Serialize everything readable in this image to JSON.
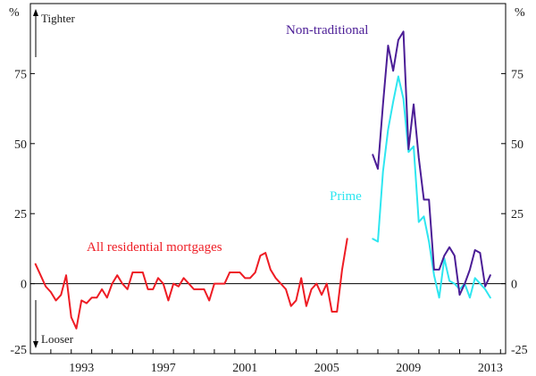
{
  "chart_data": {
    "type": "line",
    "title": "",
    "unit_label": "%",
    "ylim": [
      -25,
      100
    ],
    "yticks": [
      -25,
      0,
      25,
      50,
      75
    ],
    "xlim": [
      1990,
      2013.25
    ],
    "xticks": [
      1993,
      1997,
      2001,
      2005,
      2009,
      2013
    ],
    "annotations": {
      "tighter": "Tighter",
      "looser": "Looser"
    },
    "colors": {
      "all": "#ee1c24",
      "prime": "#2ee6f0",
      "nontrad": "#4b1d96",
      "axis": "#000000"
    },
    "series": [
      {
        "key": "all",
        "name": "All residential mortgages",
        "x": [
          1990.25,
          1990.5,
          1990.75,
          1991.0,
          1991.25,
          1991.5,
          1991.75,
          1992.0,
          1992.25,
          1992.5,
          1992.75,
          1993.0,
          1993.25,
          1993.5,
          1993.75,
          1994.0,
          1994.25,
          1994.5,
          1994.75,
          1995.0,
          1995.25,
          1995.5,
          1995.75,
          1996.0,
          1996.25,
          1996.5,
          1996.75,
          1997.0,
          1997.25,
          1997.5,
          1997.75,
          1998.0,
          1998.25,
          1998.5,
          1998.75,
          1999.0,
          1999.25,
          1999.5,
          1999.75,
          2000.0,
          2000.25,
          2000.5,
          2000.75,
          2001.0,
          2001.25,
          2001.5,
          2001.75,
          2002.0,
          2002.25,
          2002.5,
          2002.75,
          2003.0,
          2003.25,
          2003.5,
          2003.75,
          2004.0,
          2004.25,
          2004.5,
          2004.75,
          2005.0,
          2005.25,
          2005.5,
          2005.75,
          2006.0
        ],
        "values": [
          7,
          3,
          -1,
          -3,
          -6,
          -4,
          3,
          -12,
          -16,
          -6,
          -7,
          -5,
          -5,
          -2,
          -5,
          0,
          3,
          0,
          -2,
          4,
          4,
          4,
          -2,
          -2,
          2,
          0,
          -6,
          0,
          -1,
          2,
          0,
          -2,
          -2,
          -2,
          -6,
          0,
          0,
          0,
          4,
          4,
          4,
          2,
          2,
          4,
          10,
          11,
          5,
          2,
          0,
          -2,
          -8,
          -6,
          2,
          -8,
          -2,
          0,
          -4,
          0,
          -10,
          -10,
          5,
          16,
          null,
          null
        ]
      },
      {
        "key": "prime",
        "name": "Prime",
        "x": [
          2006.75,
          2007.0,
          2007.25,
          2007.5,
          2007.75,
          2008.0,
          2008.25,
          2008.5,
          2008.75,
          2009.0,
          2009.25,
          2009.5,
          2009.75,
          2010.0,
          2010.25,
          2010.5,
          2010.75,
          2011.0,
          2011.25,
          2011.5,
          2011.75,
          2012.0,
          2012.25,
          2012.5,
          2012.75
        ],
        "values": [
          16,
          15,
          40,
          55,
          65,
          74,
          66,
          47,
          49,
          22,
          24,
          15,
          3,
          -5,
          9,
          1,
          0,
          -2,
          0,
          -5,
          2,
          0,
          -2,
          -5,
          null
        ]
      },
      {
        "key": "nontrad",
        "name": "Non-traditional",
        "x": [
          2006.75,
          2007.0,
          2007.25,
          2007.5,
          2007.75,
          2008.0,
          2008.25,
          2008.5,
          2008.75,
          2009.0,
          2009.25,
          2009.5,
          2009.75,
          2010.0,
          2010.25,
          2010.5,
          2010.75,
          2011.0,
          2011.25,
          2011.5,
          2011.75,
          2012.0,
          2012.25,
          2012.5,
          2012.75
        ],
        "values": [
          46,
          41,
          64,
          85,
          76,
          87,
          90,
          48,
          64,
          45,
          30,
          30,
          5,
          5,
          10,
          13,
          10,
          -4,
          0,
          5,
          12,
          11,
          -1,
          3,
          null
        ]
      }
    ]
  }
}
